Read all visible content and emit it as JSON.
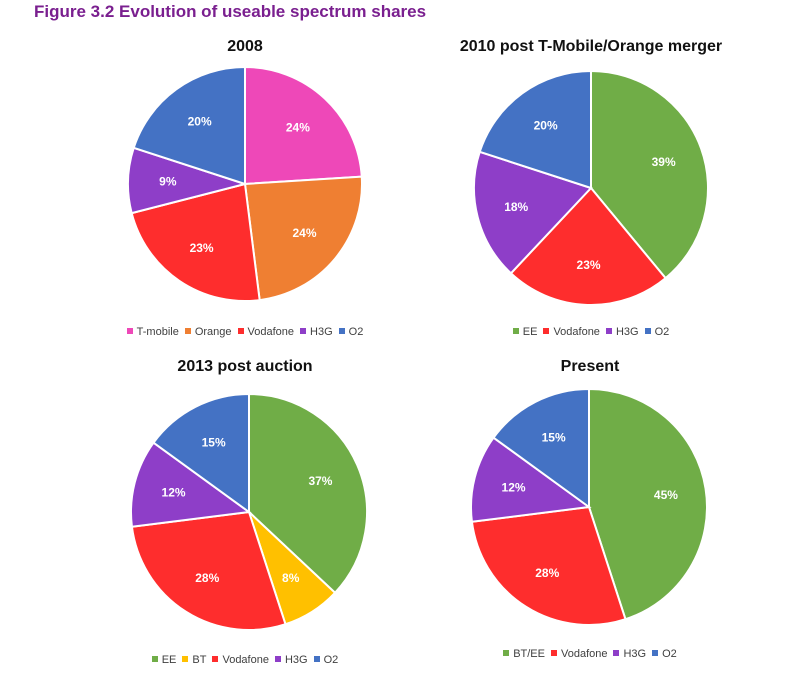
{
  "figure_title": "Figure 3.2 Evolution of useable spectrum shares",
  "chart_data": [
    {
      "type": "pie",
      "title": "2008",
      "categories": [
        "T-mobile",
        "Orange",
        "Vodafone",
        "H3G",
        "O2"
      ],
      "values": [
        24,
        24,
        23,
        9,
        20
      ],
      "value_labels": [
        "24%",
        "24%",
        "23%",
        "9%",
        "20%"
      ],
      "colors": [
        "#ee48b8",
        "#ef7f32",
        "#fe2d2d",
        "#8e3ec8",
        "#4472c4"
      ],
      "legend": "bottom"
    },
    {
      "type": "pie",
      "title": "2010 post T-Mobile/Orange merger",
      "categories": [
        "EE",
        "Vodafone",
        "H3G",
        "O2"
      ],
      "values": [
        39,
        23,
        18,
        20
      ],
      "value_labels": [
        "39%",
        "23%",
        "18%",
        "20%"
      ],
      "colors": [
        "#70ad47",
        "#fe2d2d",
        "#8e3ec8",
        "#4472c4"
      ],
      "legend": "bottom"
    },
    {
      "type": "pie",
      "title": "2013 post auction",
      "categories": [
        "EE",
        "BT",
        "Vodafone",
        "H3G",
        "O2"
      ],
      "values": [
        37,
        8,
        28,
        12,
        15
      ],
      "value_labels": [
        "37%",
        "8%",
        "28%",
        "12%",
        "15%"
      ],
      "colors": [
        "#70ad47",
        "#ffc000",
        "#fe2d2d",
        "#8e3ec8",
        "#4472c4"
      ],
      "legend": "bottom"
    },
    {
      "type": "pie",
      "title": "Present",
      "categories": [
        "BT/EE",
        "Vodafone",
        "H3G",
        "O2"
      ],
      "values": [
        45,
        28,
        12,
        15
      ],
      "value_labels": [
        "45%",
        "28%",
        "12%",
        "15%"
      ],
      "colors": [
        "#70ad47",
        "#fe2d2d",
        "#8e3ec8",
        "#4472c4"
      ],
      "legend": "bottom"
    }
  ]
}
